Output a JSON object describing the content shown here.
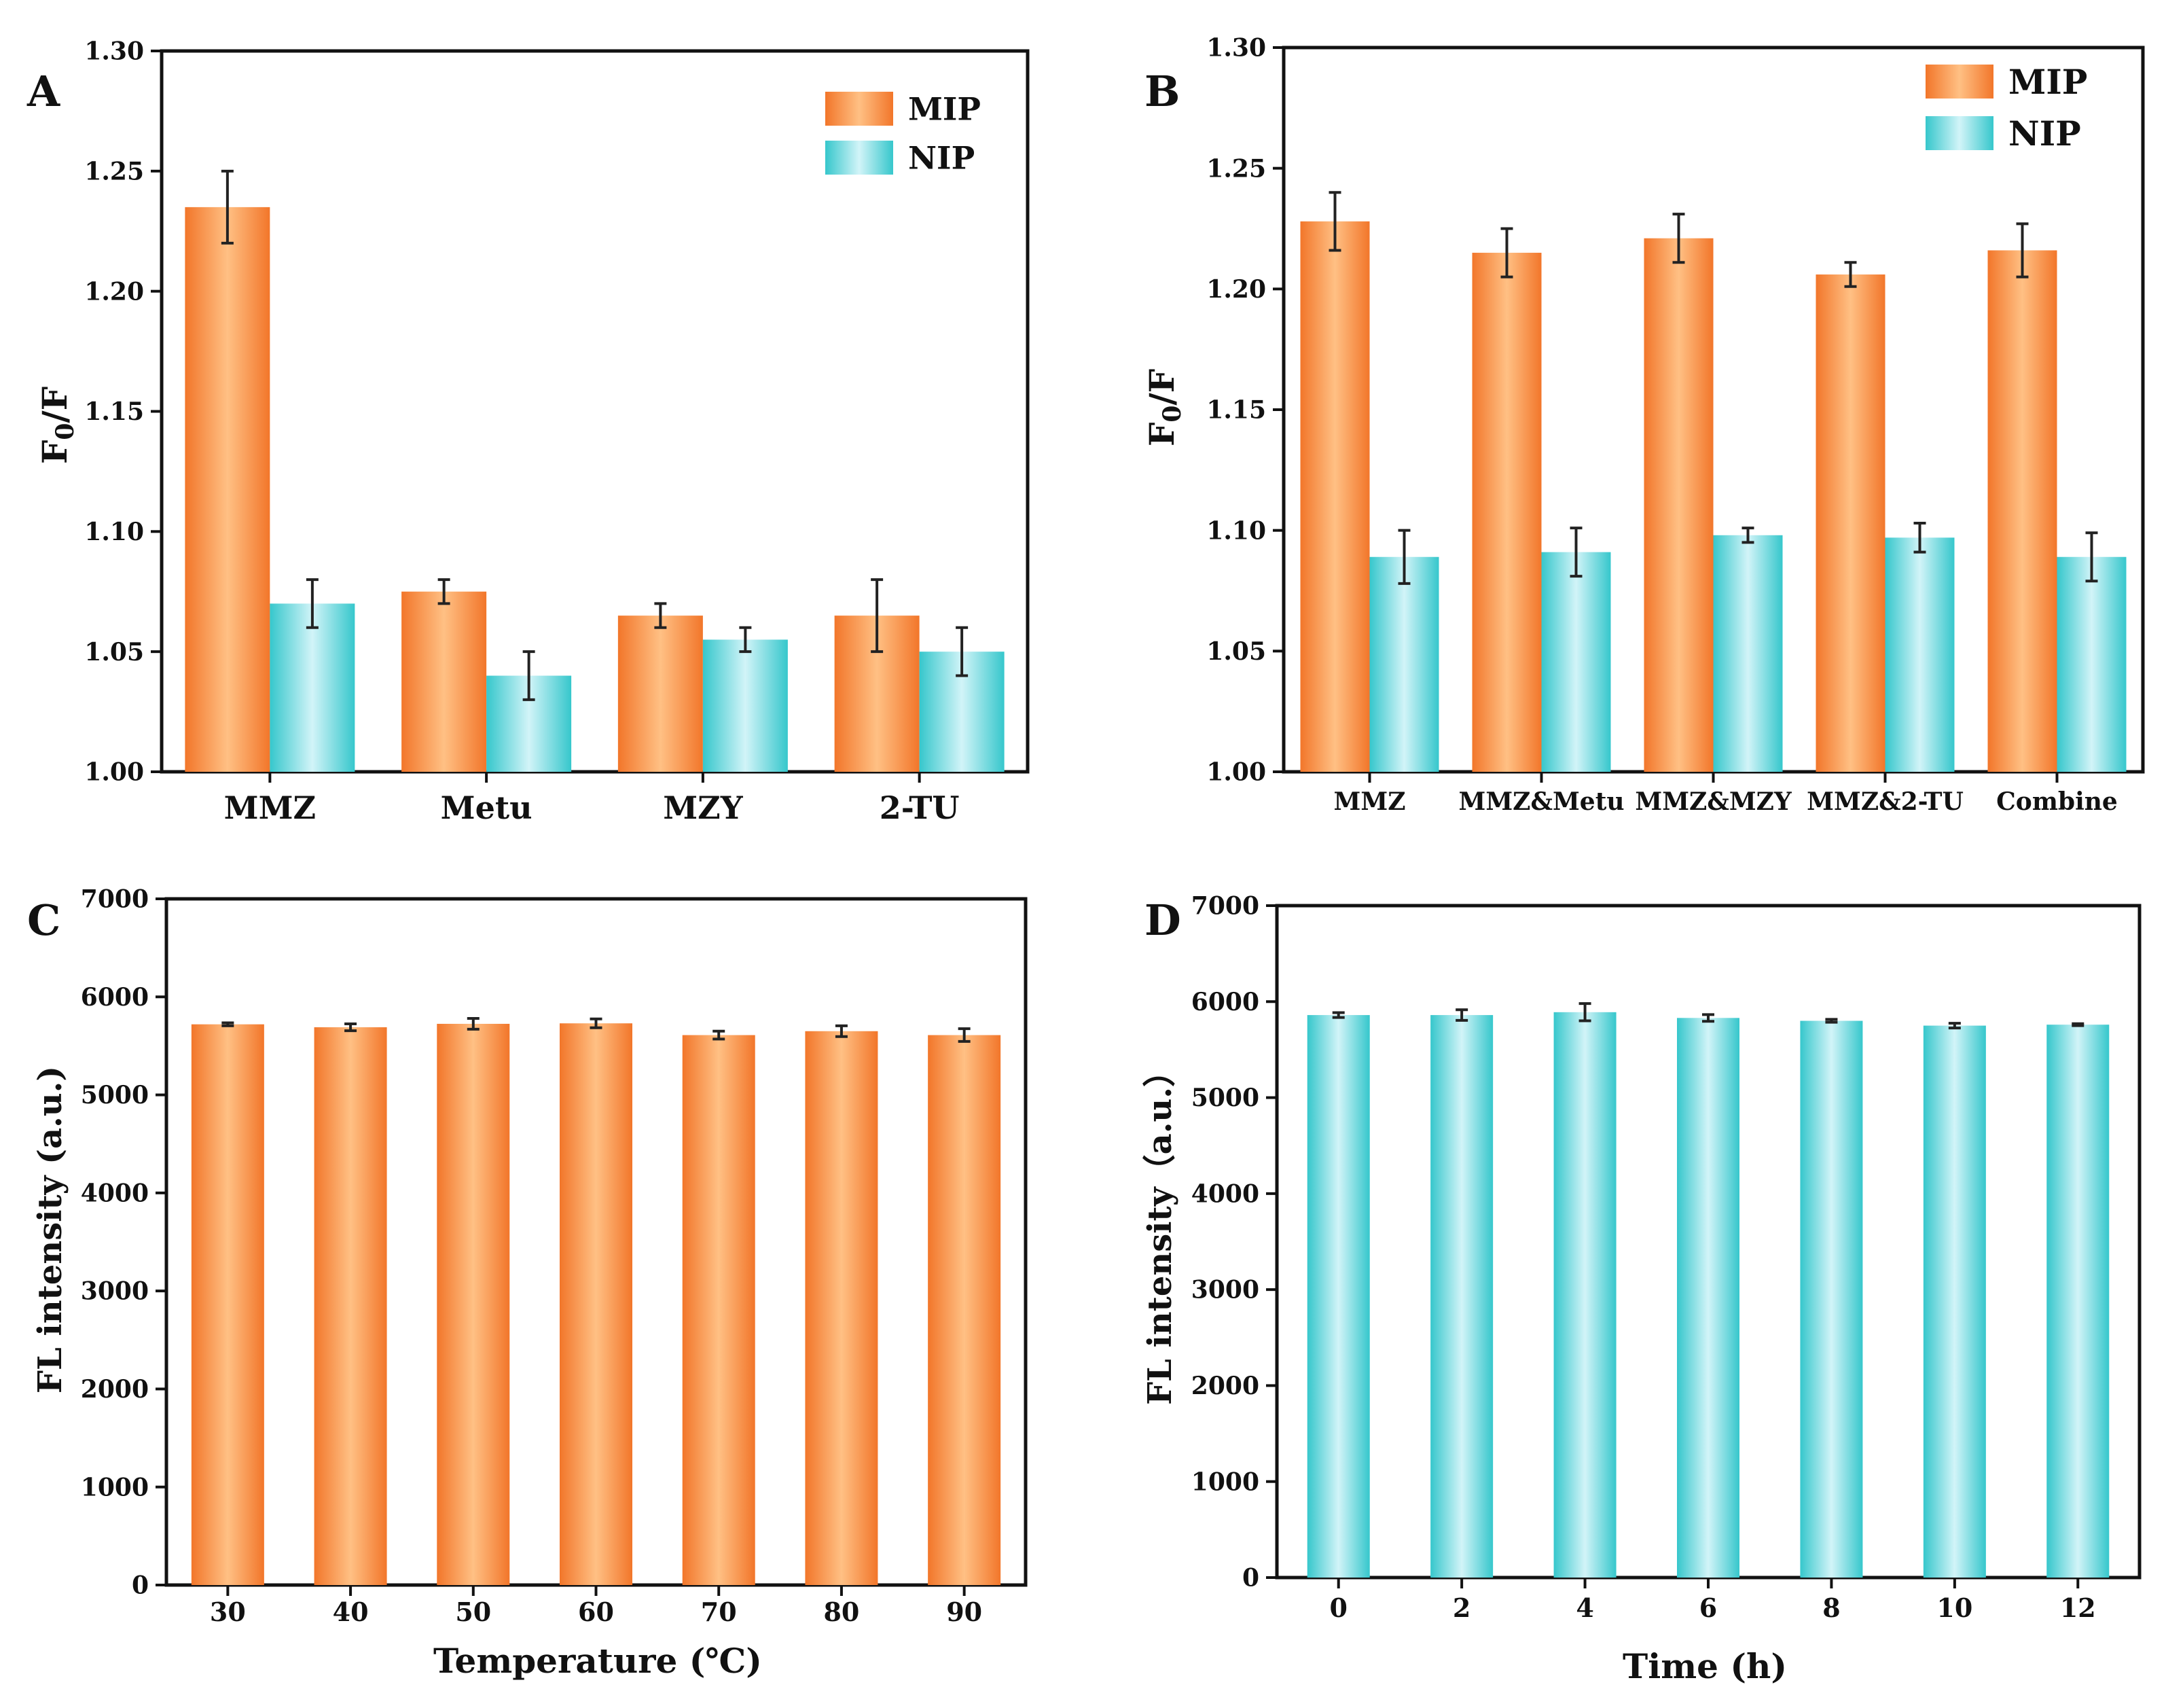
{
  "colors": {
    "mip_edge": "#f2762a",
    "mip_mid": "#ffc084",
    "nip_edge": "#36c7cc",
    "nip_mid": "#d2f4f8",
    "axis": "#111111",
    "error_bar": "#222222"
  },
  "chart_data": [
    {
      "panel": "A",
      "type": "bar",
      "title": "",
      "xlabel": "",
      "ylabel_main": "F",
      "ylabel_sub": "0",
      "ylabel_tail": "/F",
      "ylim": [
        1.0,
        1.3
      ],
      "yticks": [
        1.0,
        1.05,
        1.1,
        1.15,
        1.2,
        1.25,
        1.3
      ],
      "ytick_labels": [
        "1.00",
        "1.05",
        "1.10",
        "1.15",
        "1.20",
        "1.25",
        "1.30"
      ],
      "categories": [
        "MMZ",
        "Metu",
        "MZY",
        "2-TU"
      ],
      "series": [
        {
          "name": "MIP",
          "color": "mip",
          "values": [
            1.235,
            1.075,
            1.065,
            1.065
          ],
          "errors": [
            0.015,
            0.005,
            0.005,
            0.015
          ]
        },
        {
          "name": "NIP",
          "color": "nip",
          "values": [
            1.07,
            1.04,
            1.055,
            1.05
          ],
          "errors": [
            0.01,
            0.01,
            0.005,
            0.01
          ]
        }
      ],
      "legend": "top-right"
    },
    {
      "panel": "B",
      "type": "bar",
      "title": "",
      "xlabel": "",
      "ylabel_main": "F",
      "ylabel_sub": "0",
      "ylabel_tail": "/F",
      "ylim": [
        1.0,
        1.3
      ],
      "yticks": [
        1.0,
        1.05,
        1.1,
        1.15,
        1.2,
        1.25,
        1.3
      ],
      "ytick_labels": [
        "1.00",
        "1.05",
        "1.10",
        "1.15",
        "1.20",
        "1.25",
        "1.30"
      ],
      "categories": [
        "MMZ",
        "MMZ&Metu",
        "MMZ&MZY",
        "MMZ&2-TU",
        "Combine"
      ],
      "series": [
        {
          "name": "MIP",
          "color": "mip",
          "values": [
            1.228,
            1.215,
            1.221,
            1.206,
            1.216
          ],
          "errors": [
            0.012,
            0.01,
            0.01,
            0.005,
            0.011
          ]
        },
        {
          "name": "NIP",
          "color": "nip",
          "values": [
            1.089,
            1.091,
            1.098,
            1.097,
            1.089
          ],
          "errors": [
            0.011,
            0.01,
            0.003,
            0.006,
            0.01
          ]
        }
      ],
      "legend": "top-right"
    },
    {
      "panel": "C",
      "type": "bar",
      "title": "",
      "xlabel": "Temperature (℃)",
      "ylabel": "FL intensity (a.u.)",
      "ylim": [
        0,
        7000
      ],
      "yticks": [
        0,
        1000,
        2000,
        3000,
        4000,
        5000,
        6000,
        7000
      ],
      "ytick_labels": [
        "0",
        "1000",
        "2000",
        "3000",
        "4000",
        "5000",
        "6000",
        "7000"
      ],
      "categories": [
        "30",
        "40",
        "50",
        "60",
        "70",
        "80",
        "90"
      ],
      "series": [
        {
          "name": "MIP",
          "color": "mip",
          "values": [
            5720,
            5690,
            5725,
            5730,
            5610,
            5650,
            5610
          ],
          "errors": [
            15,
            35,
            55,
            45,
            40,
            55,
            65
          ]
        }
      ],
      "legend": "none"
    },
    {
      "panel": "D",
      "type": "bar",
      "title": "",
      "xlabel": "Time (h)",
      "ylabel": "FL intensity（a.u.）",
      "ylim": [
        0,
        7000
      ],
      "yticks": [
        0,
        1000,
        2000,
        3000,
        4000,
        5000,
        6000,
        7000
      ],
      "ytick_labels": [
        "0",
        "1000",
        "2000",
        "3000",
        "4000",
        "5000",
        "6000",
        "7000"
      ],
      "categories": [
        "0",
        "2",
        "4",
        "6",
        "8",
        "10",
        "12"
      ],
      "series": [
        {
          "name": "NIP",
          "color": "nip",
          "values": [
            5860,
            5860,
            5890,
            5830,
            5800,
            5750,
            5760
          ],
          "errors": [
            25,
            55,
            90,
            35,
            15,
            25,
            10
          ]
        }
      ],
      "legend": "none"
    }
  ]
}
